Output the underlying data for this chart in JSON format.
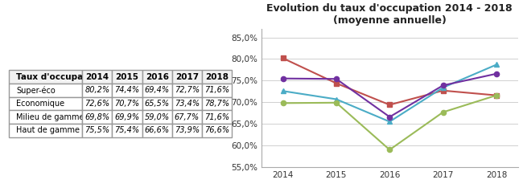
{
  "title": "Evolution du taux d'occupation 2014 - 2018\n(moyenne annuelle)",
  "years": [
    2014,
    2015,
    2016,
    2017,
    2018
  ],
  "series": [
    {
      "label": "Super-éco",
      "values": [
        80.2,
        74.4,
        69.4,
        72.7,
        71.6
      ],
      "color": "#C0504D",
      "marker": "s"
    },
    {
      "label": "Economique",
      "values": [
        72.6,
        70.7,
        65.5,
        73.4,
        78.7
      ],
      "color": "#4BACC6",
      "marker": "^"
    },
    {
      "label": "Milieu de gamme",
      "values": [
        69.8,
        69.9,
        59.0,
        67.7,
        71.6
      ],
      "color": "#9BBB59",
      "marker": "o"
    },
    {
      "label": "Haut de gamme CDG",
      "values": [
        75.5,
        75.4,
        66.6,
        73.9,
        76.6
      ],
      "color": "#7030A0",
      "marker": "o"
    }
  ],
  "table_header": [
    "Taux d'occupation",
    "2014",
    "2015",
    "2016",
    "2017",
    "2018"
  ],
  "table_rows": [
    [
      "Super-éco",
      "80,2%",
      "74,4%",
      "69,4%",
      "72,7%",
      "71,6%"
    ],
    [
      "Economique",
      "72,6%",
      "70,7%",
      "65,5%",
      "73,4%",
      "78,7%"
    ],
    [
      "Milieu de gamme",
      "69,8%",
      "69,9%",
      "59,0%",
      "67,7%",
      "71,6%"
    ],
    [
      "Haut de gamme CDG",
      "75,5%",
      "75,4%",
      "66,6%",
      "73,9%",
      "76,6%"
    ]
  ],
  "ylim": [
    55.0,
    87.0
  ],
  "yticks": [
    55.0,
    60.0,
    65.0,
    70.0,
    75.0,
    80.0,
    85.0
  ],
  "background_color": "#ffffff",
  "grid_color": "#d0d0d0"
}
